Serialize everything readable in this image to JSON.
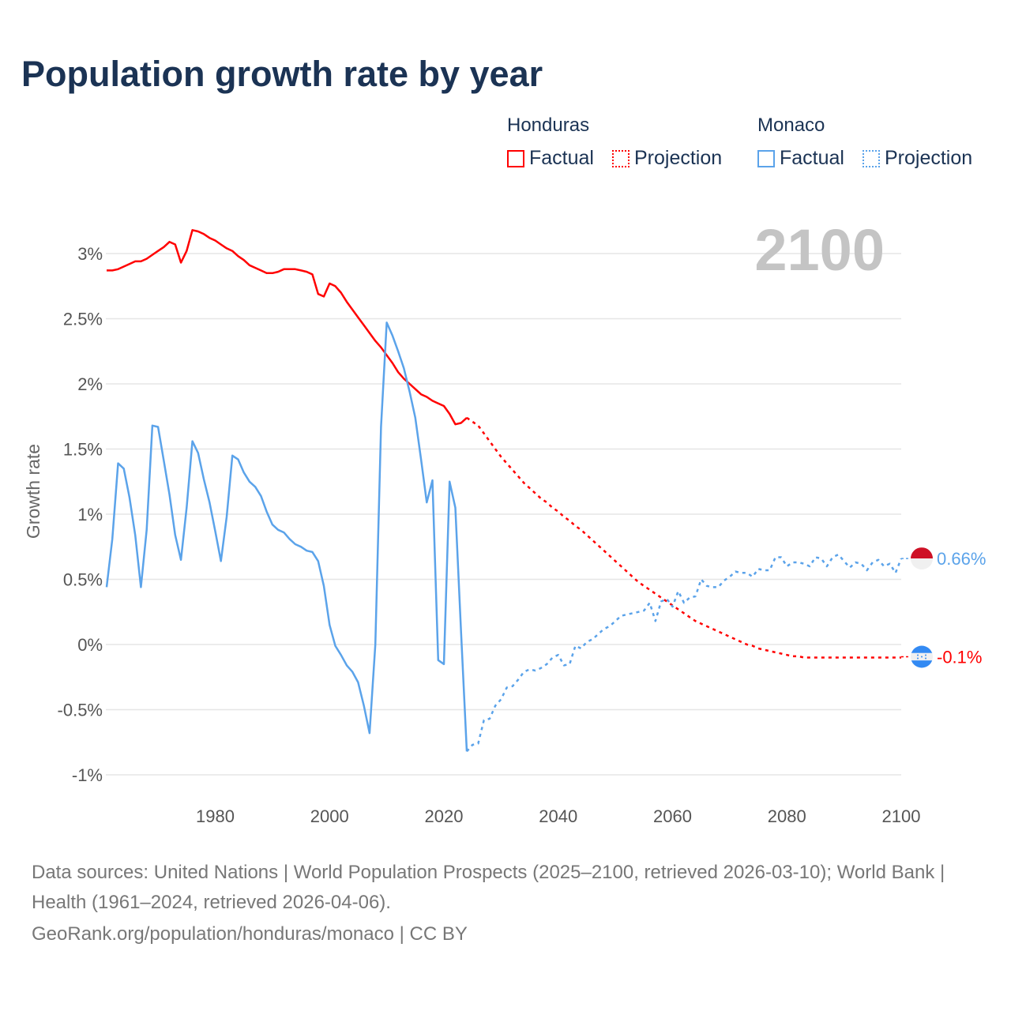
{
  "title": "Population growth rate by year",
  "legend": {
    "groups": [
      {
        "name": "Honduras",
        "color": "#ff0000",
        "factual_label": "Factual",
        "projection_label": "Projection"
      },
      {
        "name": "Monaco",
        "color": "#5ba3ea",
        "factual_label": "Factual",
        "projection_label": "Projection"
      }
    ]
  },
  "footer": {
    "line1": "Data sources: United Nations | World Population Prospects (2025–2100, retrieved 2026-03-10); World Bank | Health (1961–2024, retrieved 2026-04-06).",
    "line2": "GeoRank.org/population/honduras/monaco | CC BY"
  },
  "chart_data": {
    "type": "line",
    "title": "Population growth rate by year",
    "xlabel": "",
    "ylabel": "Growth rate",
    "xlim": [
      1961,
      2100
    ],
    "ylim": [
      -1.2,
      3.2
    ],
    "current_year_label": "2100",
    "xticks": [
      1980,
      2000,
      2020,
      2040,
      2060,
      2080,
      2100
    ],
    "yticks": [
      -1,
      -0.5,
      0,
      0.5,
      1,
      1.5,
      2,
      2.5,
      3
    ],
    "ytick_labels": [
      "-1%",
      "-0.5%",
      "0%",
      "0.5%",
      "1%",
      "1.5%",
      "2%",
      "2.5%",
      "3%"
    ],
    "grid": true,
    "legend_position": "top-right",
    "series": [
      {
        "name": "Honduras Factual",
        "color": "#ff0000",
        "dashed": false,
        "x_start": 1961,
        "values": [
          2.87,
          2.87,
          2.88,
          2.9,
          2.92,
          2.94,
          2.94,
          2.96,
          2.99,
          3.02,
          3.05,
          3.09,
          3.07,
          2.93,
          3.02,
          3.18,
          3.17,
          3.15,
          3.12,
          3.1,
          3.07,
          3.04,
          3.02,
          2.98,
          2.95,
          2.91,
          2.89,
          2.87,
          2.85,
          2.85,
          2.86,
          2.88,
          2.88,
          2.88,
          2.87,
          2.86,
          2.84,
          2.69,
          2.67,
          2.77,
          2.75,
          2.7,
          2.63,
          2.57,
          2.51,
          2.45,
          2.39,
          2.33,
          2.28,
          2.22,
          2.16,
          2.09,
          2.04,
          2.0,
          1.96,
          1.92,
          1.9,
          1.87,
          1.85,
          1.83,
          1.77,
          1.69,
          1.7,
          1.74
        ]
      },
      {
        "name": "Honduras Projection",
        "color": "#ff0000",
        "dashed": true,
        "x_start": 2024,
        "x_step": 1,
        "values": [
          1.74,
          1.71,
          1.68,
          1.62,
          1.56,
          1.5,
          1.44,
          1.39,
          1.34,
          1.29,
          1.24,
          1.2,
          1.16,
          1.12,
          1.09,
          1.05,
          1.02,
          0.98,
          0.95,
          0.91,
          0.88,
          0.84,
          0.8,
          0.76,
          0.72,
          0.68,
          0.64,
          0.6,
          0.56,
          0.52,
          0.48,
          0.45,
          0.42,
          0.39,
          0.36,
          0.33,
          0.3,
          0.27,
          0.24,
          0.21,
          0.18,
          0.16,
          0.14,
          0.12,
          0.1,
          0.08,
          0.06,
          0.04,
          0.02,
          0.0,
          -0.01,
          -0.03,
          -0.04,
          -0.05,
          -0.06,
          -0.07,
          -0.08,
          -0.09,
          -0.09,
          -0.1,
          -0.1,
          -0.1,
          -0.1,
          -0.1,
          -0.1,
          -0.1,
          -0.1,
          -0.1,
          -0.1,
          -0.1,
          -0.1,
          -0.1,
          -0.1,
          -0.1,
          -0.1,
          -0.1,
          -0.1
        ]
      },
      {
        "name": "Monaco Factual",
        "color": "#5ba3ea",
        "dashed": false,
        "x_start": 1961,
        "values": [
          0.44,
          0.81,
          1.39,
          1.35,
          1.13,
          0.84,
          0.44,
          0.88,
          1.68,
          1.67,
          1.41,
          1.15,
          0.84,
          0.65,
          1.05,
          1.56,
          1.47,
          1.27,
          1.09,
          0.87,
          0.64,
          0.98,
          1.45,
          1.42,
          1.32,
          1.25,
          1.21,
          1.14,
          1.02,
          0.92,
          0.88,
          0.86,
          0.81,
          0.77,
          0.75,
          0.72,
          0.71,
          0.64,
          0.45,
          0.15,
          -0.01,
          -0.08,
          -0.16,
          -0.21,
          -0.29,
          -0.47,
          -0.68,
          0.0,
          1.67,
          2.47,
          2.37,
          2.25,
          2.12,
          1.94,
          1.74,
          1.42,
          1.09,
          1.26,
          -0.12,
          -0.15,
          1.25,
          1.05,
          0.1,
          -0.82
        ]
      },
      {
        "name": "Monaco Projection",
        "color": "#5ba3ea",
        "dashed": true,
        "x_start": 2024,
        "values": [
          -0.82,
          -0.77,
          -0.76,
          -0.58,
          -0.57,
          -0.47,
          -0.42,
          -0.33,
          -0.32,
          -0.27,
          -0.21,
          -0.19,
          -0.2,
          -0.18,
          -0.15,
          -0.1,
          -0.08,
          -0.16,
          -0.15,
          -0.01,
          -0.03,
          0.02,
          0.04,
          0.08,
          0.12,
          0.14,
          0.18,
          0.22,
          0.23,
          0.24,
          0.25,
          0.26,
          0.32,
          0.18,
          0.33,
          0.35,
          0.29,
          0.41,
          0.32,
          0.36,
          0.37,
          0.5,
          0.45,
          0.44,
          0.44,
          0.49,
          0.52,
          0.56,
          0.55,
          0.55,
          0.52,
          0.58,
          0.57,
          0.57,
          0.67,
          0.67,
          0.6,
          0.63,
          0.63,
          0.62,
          0.6,
          0.67,
          0.66,
          0.6,
          0.67,
          0.69,
          0.64,
          0.59,
          0.63,
          0.62,
          0.57,
          0.63,
          0.65,
          0.6,
          0.62,
          0.55,
          0.66
        ]
      }
    ],
    "end_labels": [
      {
        "country": "Monaco",
        "text": "0.66%",
        "value": 0.66,
        "color": "#5ba3ea",
        "flag": "monaco-flag"
      },
      {
        "country": "Honduras",
        "text": "-0.1%",
        "value": -0.1,
        "color": "#ff0000",
        "flag": "honduras-flag"
      }
    ]
  }
}
